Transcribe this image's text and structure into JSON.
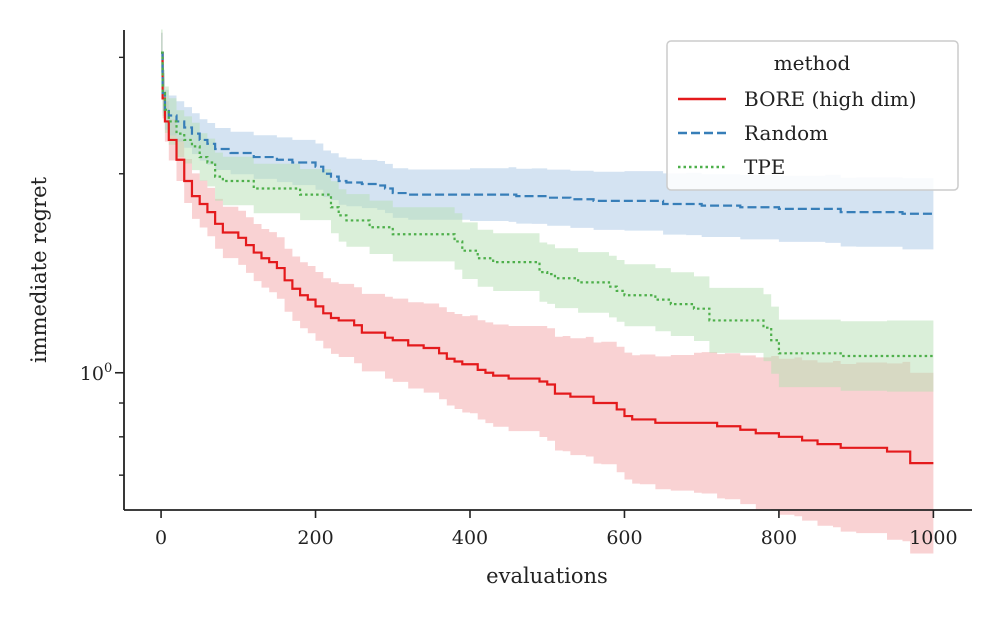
{
  "chart_data": {
    "type": "line",
    "title": "",
    "xlabel": "evaluations",
    "ylabel": "immediate regret",
    "xlim": [
      -48,
      1050
    ],
    "ylim": [
      0.62,
      3.3
    ],
    "yscale": "log",
    "x_ticks": [
      0,
      200,
      400,
      600,
      800,
      1000
    ],
    "y_major_ticks": [
      {
        "value": 1,
        "base": "10",
        "exponent": "0"
      }
    ],
    "y_minor_ticks": [
      0.7,
      0.8,
      0.9,
      2,
      3
    ],
    "grid": false,
    "legend": {
      "title": "method",
      "position": "top-right"
    },
    "series": [
      {
        "name": "BORE (high dim)",
        "color": "#e41a1c",
        "style": "solid",
        "x": [
          0,
          2,
          5,
          10,
          20,
          30,
          40,
          50,
          60,
          70,
          80,
          100,
          110,
          120,
          130,
          140,
          150,
          160,
          170,
          180,
          190,
          200,
          210,
          220,
          230,
          250,
          260,
          290,
          300,
          320,
          340,
          360,
          370,
          380,
          390,
          400,
          410,
          420,
          430,
          450,
          490,
          500,
          510,
          520,
          530,
          550,
          560,
          570,
          590,
          600,
          610,
          620,
          640,
          660,
          690,
          700,
          720,
          730,
          750,
          770,
          790,
          800,
          820,
          830,
          850,
          870,
          880,
          900,
          940,
          960,
          970,
          1000
        ],
        "y": [
          3.05,
          2.6,
          2.4,
          2.25,
          2.1,
          1.95,
          1.85,
          1.8,
          1.75,
          1.68,
          1.63,
          1.6,
          1.56,
          1.52,
          1.49,
          1.47,
          1.44,
          1.38,
          1.34,
          1.31,
          1.29,
          1.26,
          1.23,
          1.21,
          1.2,
          1.18,
          1.15,
          1.13,
          1.12,
          1.1,
          1.09,
          1.07,
          1.05,
          1.04,
          1.03,
          1.03,
          1.01,
          1.0,
          0.99,
          0.98,
          0.97,
          0.96,
          0.93,
          0.93,
          0.92,
          0.92,
          0.9,
          0.9,
          0.88,
          0.86,
          0.85,
          0.85,
          0.84,
          0.84,
          0.84,
          0.84,
          0.83,
          0.83,
          0.82,
          0.81,
          0.81,
          0.8,
          0.8,
          0.79,
          0.78,
          0.78,
          0.77,
          0.77,
          0.76,
          0.76,
          0.73,
          0.73
        ]
      },
      {
        "name": "Random",
        "color": "#377eb8",
        "style": "dashed",
        "x": [
          0,
          2,
          5,
          10,
          20,
          30,
          40,
          50,
          60,
          70,
          90,
          120,
          150,
          170,
          200,
          210,
          220,
          230,
          240,
          260,
          280,
          290,
          300,
          320,
          400,
          450,
          460,
          480,
          500,
          530,
          560,
          600,
          650,
          680,
          700,
          750,
          800,
          860,
          880,
          900,
          960,
          1000
        ],
        "y": [
          3.05,
          2.65,
          2.5,
          2.45,
          2.4,
          2.35,
          2.3,
          2.25,
          2.22,
          2.18,
          2.15,
          2.12,
          2.1,
          2.08,
          2.05,
          2.0,
          1.98,
          1.95,
          1.94,
          1.93,
          1.92,
          1.9,
          1.87,
          1.86,
          1.86,
          1.86,
          1.85,
          1.85,
          1.84,
          1.83,
          1.82,
          1.82,
          1.8,
          1.8,
          1.79,
          1.78,
          1.77,
          1.77,
          1.75,
          1.75,
          1.74,
          1.74
        ]
      },
      {
        "name": "TPE",
        "color": "#4daf4a",
        "style": "dotted",
        "x": [
          0,
          2,
          5,
          10,
          20,
          30,
          40,
          50,
          60,
          70,
          80,
          120,
          180,
          220,
          230,
          240,
          270,
          300,
          380,
          390,
          410,
          430,
          490,
          500,
          510,
          540,
          580,
          590,
          600,
          640,
          660,
          690,
          710,
          780,
          790,
          800,
          880,
          940,
          1000
        ],
        "y": [
          3.05,
          2.65,
          2.5,
          2.4,
          2.3,
          2.25,
          2.2,
          2.12,
          2.08,
          1.98,
          1.95,
          1.9,
          1.86,
          1.78,
          1.73,
          1.7,
          1.66,
          1.62,
          1.58,
          1.53,
          1.49,
          1.47,
          1.42,
          1.41,
          1.39,
          1.37,
          1.35,
          1.33,
          1.31,
          1.29,
          1.27,
          1.25,
          1.2,
          1.17,
          1.12,
          1.07,
          1.06,
          1.06,
          1.06
        ]
      }
    ]
  }
}
